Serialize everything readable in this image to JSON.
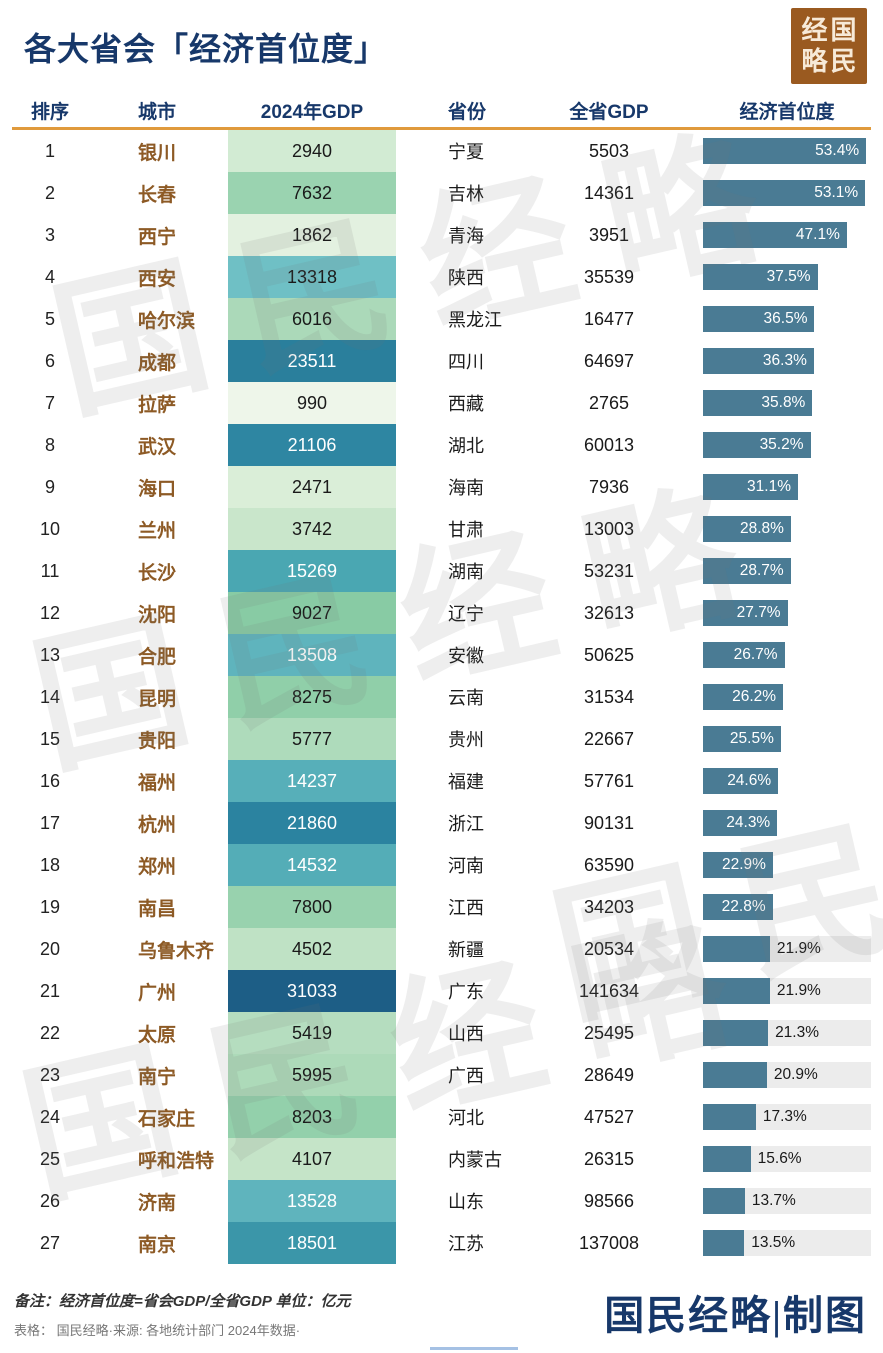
{
  "page": {
    "title": "各大省会「经济首位度」",
    "logo_chars": [
      "经",
      "国",
      "略",
      "民"
    ],
    "watermark": "国民经略",
    "footer_note1": "备注：经济首位度=省会GDP/全省GDP 单位：亿元",
    "footer_note2": "表格： 国民经略·来源: 各地统计部门 2024年数据·",
    "credit": "国民经略|制图"
  },
  "colors": {
    "title_navy": "#17386a",
    "divider_orange": "#e09a3c",
    "city_brown": "#8d5a25",
    "bar_teal": "#4a7b94",
    "bar_track_gray": "#ececec",
    "logo_brown": "#9a5a20"
  },
  "chart_data": {
    "type": "table",
    "title": "各大省会「经济首位度」",
    "columns": [
      "排序",
      "城市",
      "2024年GDP",
      "省份",
      "全省GDP",
      "经济首位度"
    ],
    "unit": "亿元",
    "primacy_formula": "经济首位度=省会GDP/全省GDP",
    "max_primacy_scale": 55,
    "rows": [
      {
        "rank": 1,
        "city": "银川",
        "gdp": 2940,
        "province": "宁夏",
        "province_gdp": 5503,
        "primacy": 53.4,
        "gdp_bg": "#d2ebd3",
        "gdp_text": "#1a1a1a",
        "label_inside": true
      },
      {
        "rank": 2,
        "city": "长春",
        "gdp": 7632,
        "province": "吉林",
        "province_gdp": 14361,
        "primacy": 53.1,
        "gdp_bg": "#9ad3b0",
        "gdp_text": "#1a1a1a",
        "label_inside": true
      },
      {
        "rank": 3,
        "city": "西宁",
        "gdp": 1862,
        "province": "青海",
        "province_gdp": 3951,
        "primacy": 47.1,
        "gdp_bg": "#e3f1e0",
        "gdp_text": "#1a1a1a",
        "label_inside": true
      },
      {
        "rank": 4,
        "city": "西安",
        "gdp": 13318,
        "province": "陕西",
        "province_gdp": 35539,
        "primacy": 37.5,
        "gdp_bg": "#6fc0c5",
        "gdp_text": "#1a1a1a",
        "label_inside": true
      },
      {
        "rank": 5,
        "city": "哈尔滨",
        "gdp": 6016,
        "province": "黑龙江",
        "province_gdp": 16477,
        "primacy": 36.5,
        "gdp_bg": "#abd9b9",
        "gdp_text": "#1a1a1a",
        "label_inside": true
      },
      {
        "rank": 6,
        "city": "成都",
        "gdp": 23511,
        "province": "四川",
        "province_gdp": 64697,
        "primacy": 36.3,
        "gdp_bg": "#2a7f9c",
        "gdp_text": "#ffffff",
        "label_inside": true
      },
      {
        "rank": 7,
        "city": "拉萨",
        "gdp": 990,
        "province": "西藏",
        "province_gdp": 2765,
        "primacy": 35.8,
        "gdp_bg": "#eef6ea",
        "gdp_text": "#1a1a1a",
        "label_inside": true
      },
      {
        "rank": 8,
        "city": "武汉",
        "gdp": 21106,
        "province": "湖北",
        "province_gdp": 60013,
        "primacy": 35.2,
        "gdp_bg": "#2e86a2",
        "gdp_text": "#ffffff",
        "label_inside": true
      },
      {
        "rank": 9,
        "city": "海口",
        "gdp": 2471,
        "province": "海南",
        "province_gdp": 7936,
        "primacy": 31.1,
        "gdp_bg": "#daeed8",
        "gdp_text": "#1a1a1a",
        "label_inside": true
      },
      {
        "rank": 10,
        "city": "兰州",
        "gdp": 3742,
        "province": "甘肃",
        "province_gdp": 13003,
        "primacy": 28.8,
        "gdp_bg": "#c9e6cb",
        "gdp_text": "#1a1a1a",
        "label_inside": true
      },
      {
        "rank": 11,
        "city": "长沙",
        "gdp": 15269,
        "province": "湖南",
        "province_gdp": 53231,
        "primacy": 28.7,
        "gdp_bg": "#4aa7b2",
        "gdp_text": "#ffffff",
        "label_inside": true
      },
      {
        "rank": 12,
        "city": "沈阳",
        "gdp": 9027,
        "province": "辽宁",
        "province_gdp": 32613,
        "primacy": 27.7,
        "gdp_bg": "#88cba4",
        "gdp_text": "#1a1a1a",
        "label_inside": true
      },
      {
        "rank": 13,
        "city": "合肥",
        "gdp": 13508,
        "province": "安徽",
        "province_gdp": 50625,
        "primacy": 26.7,
        "gdp_bg": "#5fb4bd",
        "gdp_text": "#ffffff",
        "label_inside": true
      },
      {
        "rank": 14,
        "city": "昆明",
        "gdp": 8275,
        "province": "云南",
        "province_gdp": 31534,
        "primacy": 26.2,
        "gdp_bg": "#90cfa9",
        "gdp_text": "#1a1a1a",
        "label_inside": true
      },
      {
        "rank": 15,
        "city": "贵阳",
        "gdp": 5777,
        "province": "贵州",
        "province_gdp": 22667,
        "primacy": 25.5,
        "gdp_bg": "#aedbbb",
        "gdp_text": "#1a1a1a",
        "label_inside": true
      },
      {
        "rank": 16,
        "city": "福州",
        "gdp": 14237,
        "province": "福建",
        "province_gdp": 57761,
        "primacy": 24.6,
        "gdp_bg": "#57afb9",
        "gdp_text": "#ffffff",
        "label_inside": true
      },
      {
        "rank": 17,
        "city": "杭州",
        "gdp": 21860,
        "province": "浙江",
        "province_gdp": 90131,
        "primacy": 24.3,
        "gdp_bg": "#2b83a0",
        "gdp_text": "#ffffff",
        "label_inside": true
      },
      {
        "rank": 18,
        "city": "郑州",
        "gdp": 14532,
        "province": "河南",
        "province_gdp": 63590,
        "primacy": 22.9,
        "gdp_bg": "#54adb7",
        "gdp_text": "#ffffff",
        "label_inside": true
      },
      {
        "rank": 19,
        "city": "南昌",
        "gdp": 7800,
        "province": "江西",
        "province_gdp": 34203,
        "primacy": 22.8,
        "gdp_bg": "#98d2ae",
        "gdp_text": "#1a1a1a",
        "label_inside": true
      },
      {
        "rank": 20,
        "city": "乌鲁木齐",
        "gdp": 4502,
        "province": "新疆",
        "province_gdp": 20534,
        "primacy": 21.9,
        "gdp_bg": "#bfe2c5",
        "gdp_text": "#1a1a1a",
        "label_inside": false
      },
      {
        "rank": 21,
        "city": "广州",
        "gdp": 31033,
        "province": "广东",
        "province_gdp": 141634,
        "primacy": 21.9,
        "gdp_bg": "#1d5e86",
        "gdp_text": "#ffffff",
        "label_inside": false
      },
      {
        "rank": 22,
        "city": "太原",
        "gdp": 5419,
        "province": "山西",
        "province_gdp": 25495,
        "primacy": 21.3,
        "gdp_bg": "#b5ddbf",
        "gdp_text": "#1a1a1a",
        "label_inside": false
      },
      {
        "rank": 23,
        "city": "南宁",
        "gdp": 5995,
        "province": "广西",
        "province_gdp": 28649,
        "primacy": 20.9,
        "gdp_bg": "#addab9",
        "gdp_text": "#1a1a1a",
        "label_inside": false
      },
      {
        "rank": 24,
        "city": "石家庄",
        "gdp": 8203,
        "province": "河北",
        "province_gdp": 47527,
        "primacy": 17.3,
        "gdp_bg": "#93d0ab",
        "gdp_text": "#1a1a1a",
        "label_inside": false
      },
      {
        "rank": 25,
        "city": "呼和浩特",
        "gdp": 4107,
        "province": "内蒙古",
        "province_gdp": 26315,
        "primacy": 15.6,
        "gdp_bg": "#c5e4c8",
        "gdp_text": "#1a1a1a",
        "label_inside": false
      },
      {
        "rank": 26,
        "city": "济南",
        "gdp": 13528,
        "province": "山东",
        "province_gdp": 98566,
        "primacy": 13.7,
        "gdp_bg": "#5fb4bd",
        "gdp_text": "#ffffff",
        "label_inside": false
      },
      {
        "rank": 27,
        "city": "南京",
        "gdp": 18501,
        "province": "江苏",
        "province_gdp": 137008,
        "primacy": 13.5,
        "gdp_bg": "#3b96a9",
        "gdp_text": "#ffffff",
        "label_inside": false
      }
    ]
  }
}
